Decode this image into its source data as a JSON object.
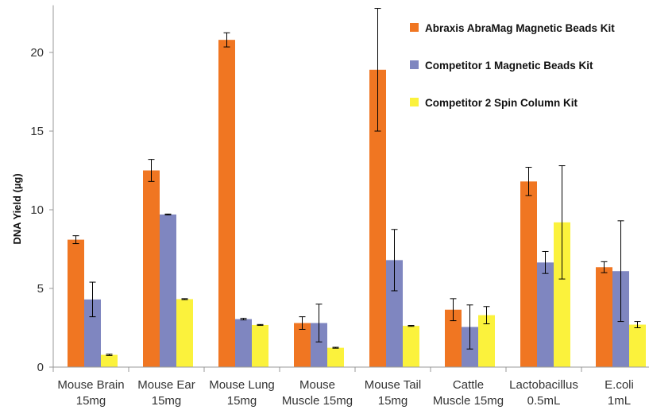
{
  "chart_data": {
    "type": "bar",
    "title": "",
    "xlabel": "",
    "ylabel": "DNA Yield (µg)",
    "ylim": [
      0,
      23
    ],
    "yticks": [
      0,
      5,
      10,
      15,
      20
    ],
    "grid": false,
    "legend_position": "top-right",
    "categories": [
      [
        "Mouse Brain",
        "15mg"
      ],
      [
        "Mouse Ear",
        "15mg"
      ],
      [
        "Mouse Lung",
        "15mg"
      ],
      [
        "Mouse",
        "Muscle 15mg"
      ],
      [
        "Mouse Tail",
        "15mg"
      ],
      [
        "Cattle",
        "Muscle 15mg"
      ],
      [
        "Lactobacillus",
        "0.5mL"
      ],
      [
        "E.coli",
        "1mL"
      ]
    ],
    "series": [
      {
        "name": "Abraxis AbraMag Magnetic Beads Kit",
        "color": "#F07622",
        "values": [
          8.1,
          12.5,
          20.8,
          2.8,
          18.9,
          3.65,
          11.8,
          6.35
        ],
        "errors": [
          0.25,
          0.7,
          0.45,
          0.4,
          3.9,
          0.7,
          0.9,
          0.35
        ]
      },
      {
        "name": "Competitor 1 Magnetic Beads Kit",
        "color": "#7F86C0",
        "values": [
          4.3,
          9.7,
          3.05,
          2.8,
          6.8,
          2.55,
          6.65,
          6.1
        ],
        "errors": [
          1.1,
          0.03,
          0.05,
          1.2,
          1.95,
          1.4,
          0.7,
          3.2
        ]
      },
      {
        "name": "Competitor 2 Spin Column Kit",
        "color": "#FBF23C",
        "values": [
          0.78,
          4.32,
          2.68,
          1.23,
          2.62,
          3.3,
          9.2,
          2.7
        ],
        "errors": [
          0.04,
          0.03,
          0.03,
          0.03,
          0.03,
          0.55,
          3.6,
          0.2
        ]
      }
    ]
  }
}
